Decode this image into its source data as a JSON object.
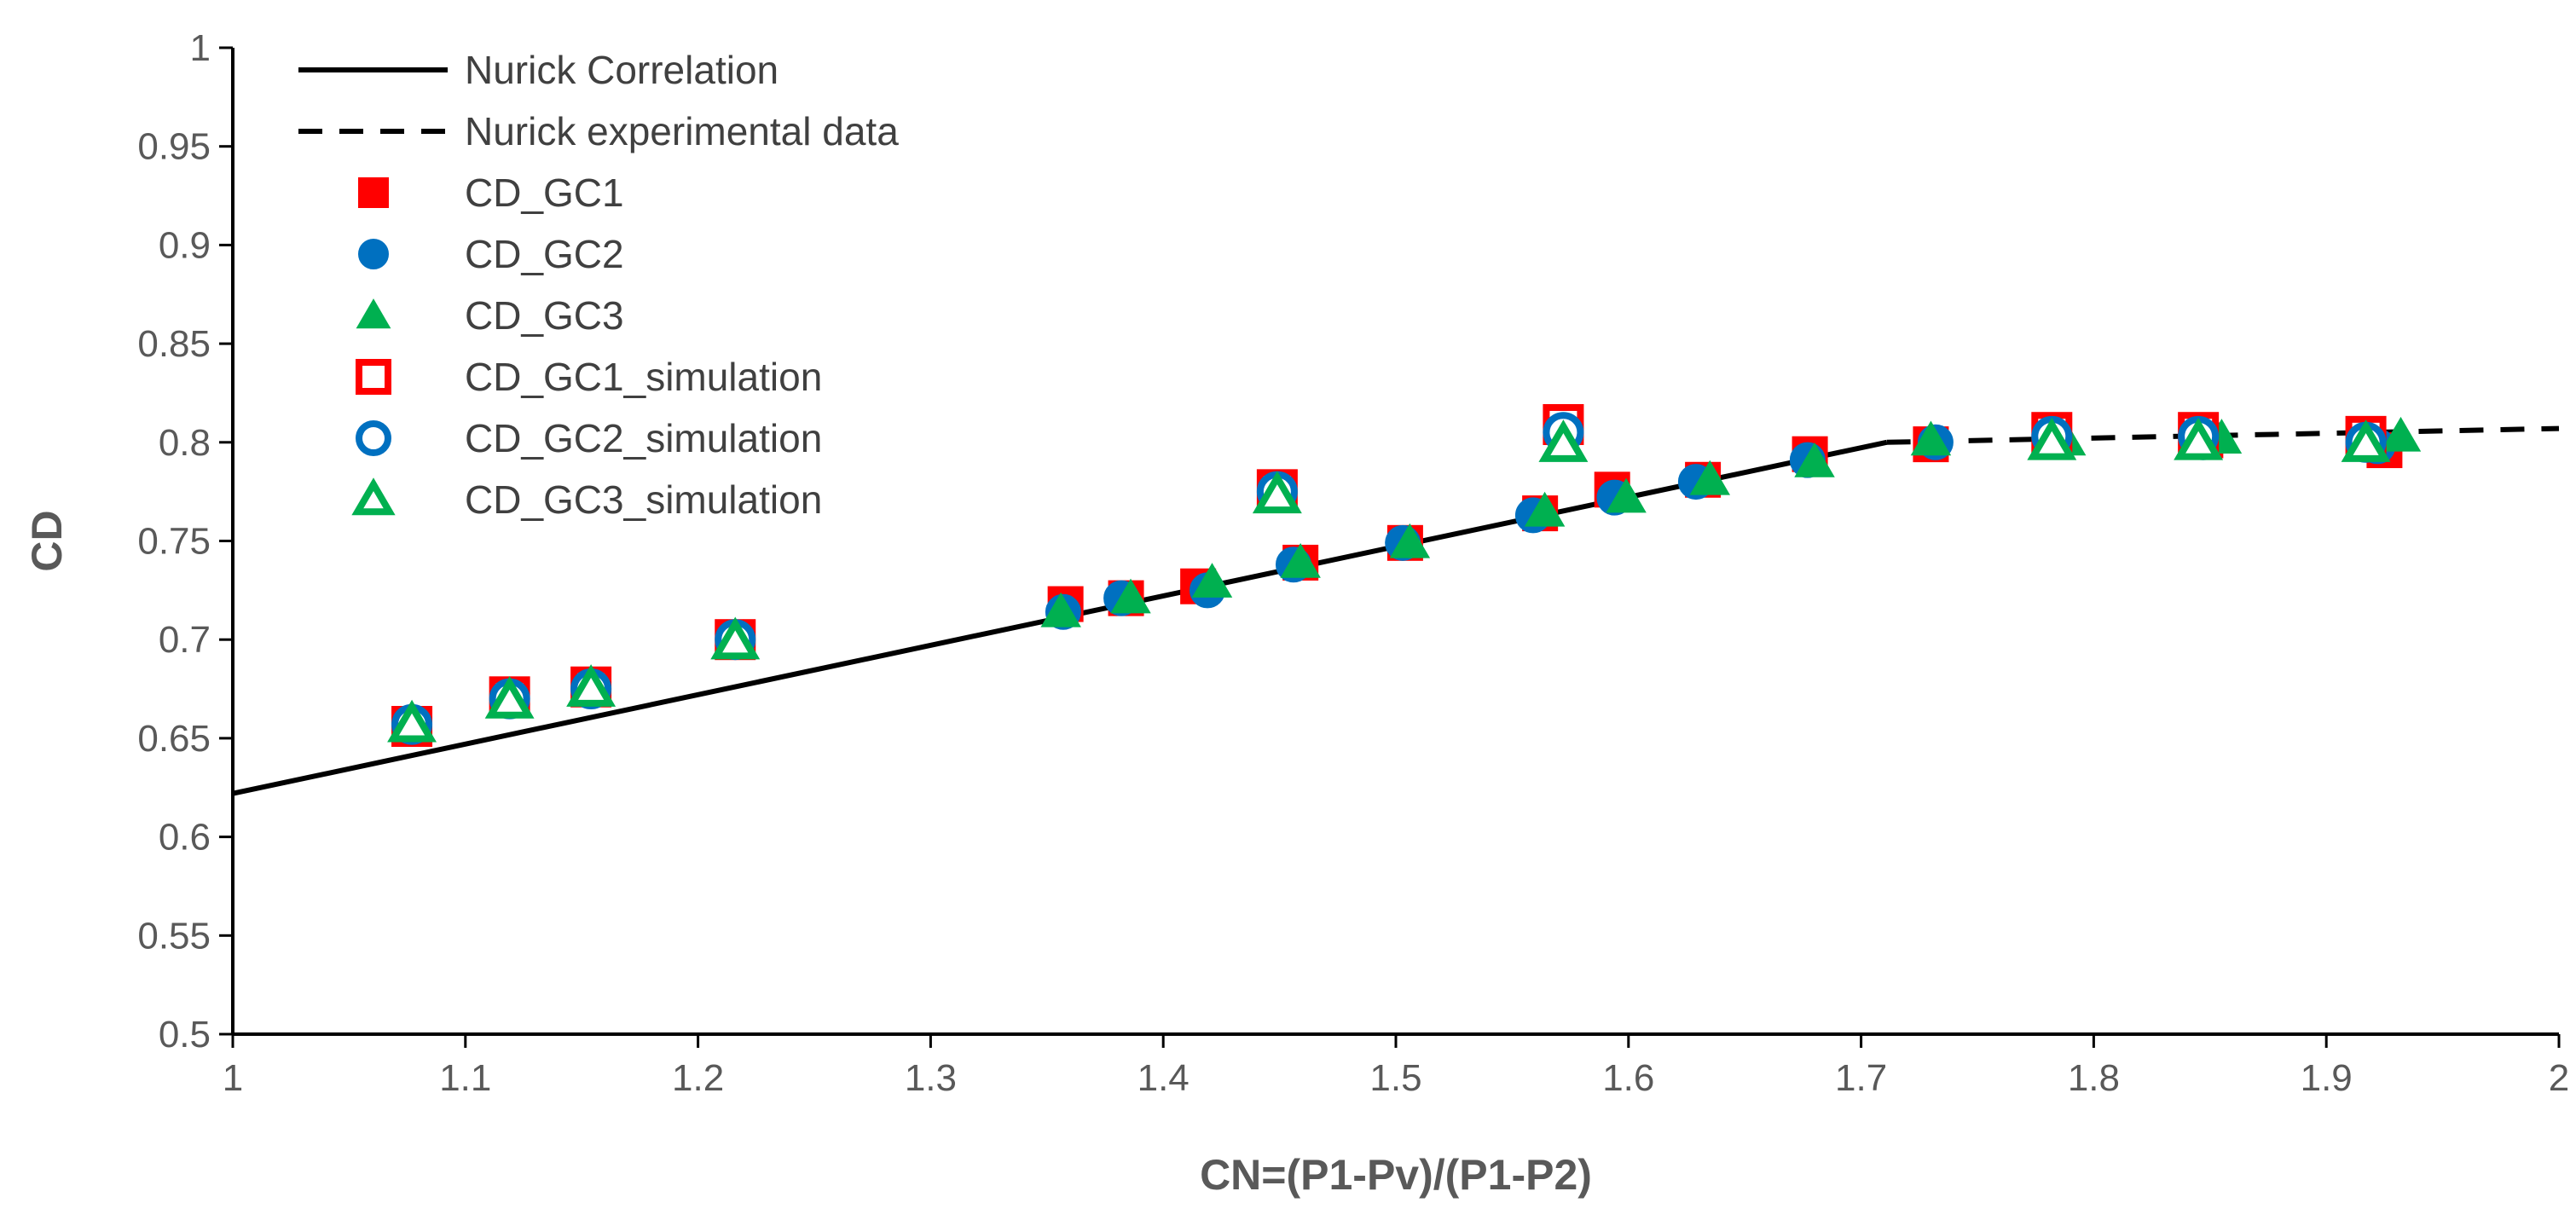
{
  "chart_data": {
    "type": "scatter",
    "title": "",
    "xlabel": "CN=(P1-Pv)/(P1-P2)",
    "ylabel": "CD",
    "xlim": [
      1,
      2
    ],
    "ylim": [
      0.5,
      1
    ],
    "xticks": [
      "1",
      "1.1",
      "1.2",
      "1.3",
      "1.4",
      "1.5",
      "1.6",
      "1.7",
      "1.8",
      "1.9",
      "2"
    ],
    "yticks": [
      "0.5",
      "0.55",
      "0.6",
      "0.65",
      "0.7",
      "0.75",
      "0.8",
      "0.85",
      "0.9",
      "0.95",
      "1"
    ],
    "grid": false,
    "legend_position": "top-left",
    "series": [
      {
        "name": "Nurick Correlation",
        "kind": "line",
        "style": "solid",
        "color": "#000000",
        "x": [
          1,
          1.711
        ],
        "y": [
          0.622,
          0.8
        ]
      },
      {
        "name": "Nurick experimental data",
        "kind": "line",
        "style": "dashed",
        "color": "#000000",
        "x": [
          1.711,
          2
        ],
        "y": [
          0.8,
          0.807
        ]
      },
      {
        "name": "CD_GC1",
        "kind": "marker",
        "marker": "square",
        "filled": true,
        "color": "#FF0000",
        "x": [
          1.358,
          1.384,
          1.415,
          1.459,
          1.504,
          1.562,
          1.593,
          1.632,
          1.678,
          1.73,
          1.783,
          1.848,
          1.925
        ],
        "y": [
          0.718,
          0.721,
          0.727,
          0.739,
          0.749,
          0.764,
          0.776,
          0.781,
          0.794,
          0.799,
          0.803,
          0.801,
          0.796
        ]
      },
      {
        "name": "CD_GC2",
        "kind": "marker",
        "marker": "circle",
        "filled": true,
        "color": "#0070C0",
        "x": [
          1.357,
          1.382,
          1.419,
          1.456,
          1.503,
          1.559,
          1.594,
          1.629,
          1.677,
          1.732,
          1.784,
          1.847,
          1.922
        ],
        "y": [
          0.714,
          0.721,
          0.725,
          0.738,
          0.749,
          0.763,
          0.772,
          0.78,
          0.791,
          0.8,
          0.801,
          0.8,
          0.798
        ]
      },
      {
        "name": "CD_GC3",
        "kind": "marker",
        "marker": "triangle",
        "filled": true,
        "color": "#00B050",
        "x": [
          1.356,
          1.386,
          1.421,
          1.459,
          1.506,
          1.564,
          1.599,
          1.635,
          1.68,
          1.73,
          1.788,
          1.855,
          1.932
        ],
        "y": [
          0.714,
          0.721,
          0.729,
          0.739,
          0.749,
          0.765,
          0.772,
          0.781,
          0.79,
          0.801,
          0.801,
          0.802,
          0.803
        ]
      },
      {
        "name": "CD_GC1_simulation",
        "kind": "marker",
        "marker": "square",
        "filled": false,
        "color": "#FF0000",
        "x": [
          1.077,
          1.119,
          1.154,
          1.216,
          1.449,
          1.572,
          1.782,
          1.845,
          1.917
        ],
        "y": [
          0.656,
          0.671,
          0.676,
          0.7,
          0.776,
          0.809,
          0.805,
          0.805,
          0.803
        ]
      },
      {
        "name": "CD_GC2_simulation",
        "kind": "marker",
        "marker": "circle",
        "filled": false,
        "color": "#0070C0",
        "x": [
          1.077,
          1.119,
          1.154,
          1.216,
          1.449,
          1.572,
          1.782,
          1.845,
          1.917
        ],
        "y": [
          0.657,
          0.67,
          0.675,
          0.7,
          0.775,
          0.805,
          0.803,
          0.803,
          0.8
        ]
      },
      {
        "name": "CD_GC3_simulation",
        "kind": "marker",
        "marker": "triangle",
        "filled": false,
        "color": "#00B050",
        "x": [
          1.077,
          1.119,
          1.154,
          1.216,
          1.449,
          1.572,
          1.782,
          1.845,
          1.917
        ],
        "y": [
          0.657,
          0.669,
          0.675,
          0.699,
          0.773,
          0.799,
          0.8,
          0.8,
          0.799
        ]
      }
    ]
  }
}
